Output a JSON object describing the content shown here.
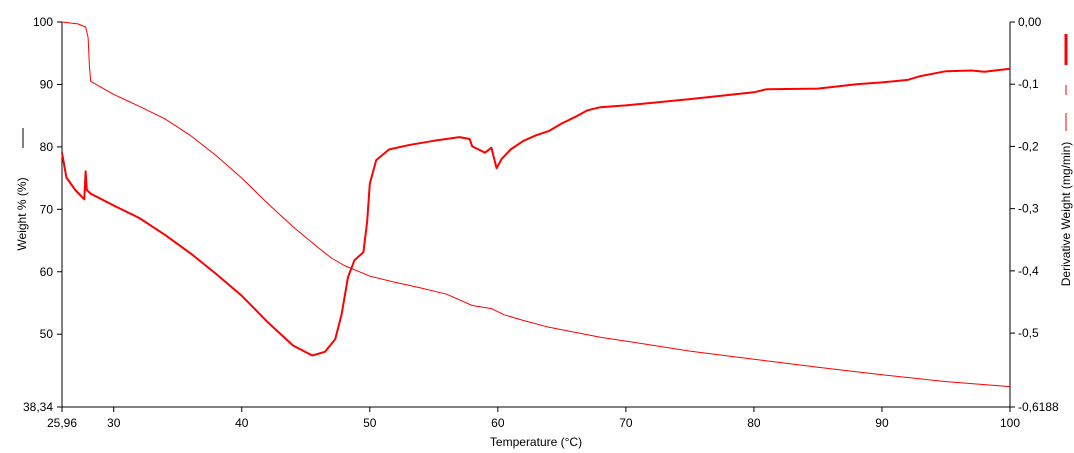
{
  "chart_data": {
    "type": "line",
    "xlabel": "Temperature (°C)",
    "ylabel_left": "Weight % (%)",
    "ylabel_right": "Derivative Weight (mg/min)",
    "xlim": [
      25.96,
      100
    ],
    "ylim_left": [
      38.34,
      100
    ],
    "ylim_right": [
      -0.6188,
      0
    ],
    "x_ticks": [
      "25,96",
      "30",
      "40",
      "50",
      "60",
      "70",
      "80",
      "90",
      "100"
    ],
    "x_tick_values": [
      25.96,
      30,
      40,
      50,
      60,
      70,
      80,
      90,
      100
    ],
    "y_left_ticks": [
      "38,34",
      "50",
      "60",
      "70",
      "80",
      "90",
      "100"
    ],
    "y_left_tick_values": [
      38.34,
      50,
      60,
      70,
      80,
      90,
      100
    ],
    "y_right_ticks": [
      "-0,6188",
      "-0,5",
      "-0,4",
      "-0,3",
      "-0,2",
      "-0,1",
      "0,00"
    ],
    "y_right_tick_values": [
      -0.6188,
      -0.5,
      -0.4,
      -0.3,
      -0.2,
      -0.1,
      0
    ],
    "grid": false,
    "color": "#ff0000",
    "series": [
      {
        "axis": "left",
        "style": "thin",
        "points": [
          [
            25.96,
            100
          ],
          [
            27.2,
            99.7
          ],
          [
            27.8,
            99.2
          ],
          [
            28.0,
            97.5
          ],
          [
            28.1,
            93
          ],
          [
            28.2,
            90.5
          ],
          [
            30,
            88.4
          ],
          [
            32,
            86.5
          ],
          [
            34,
            84.5
          ],
          [
            36,
            81.8
          ],
          [
            38,
            78.6
          ],
          [
            40,
            75
          ],
          [
            42,
            71
          ],
          [
            44,
            67.2
          ],
          [
            46,
            63.8
          ],
          [
            47,
            62.2
          ],
          [
            48,
            61
          ],
          [
            50,
            59.3
          ],
          [
            52,
            58.3
          ],
          [
            54,
            57.4
          ],
          [
            56,
            56.4
          ],
          [
            58,
            54.6
          ],
          [
            59.5,
            54.1
          ],
          [
            60.5,
            53.1
          ],
          [
            62,
            52.2
          ],
          [
            64,
            51.1
          ],
          [
            66,
            50.3
          ],
          [
            68,
            49.5
          ],
          [
            70,
            48.9
          ],
          [
            75,
            47.3
          ],
          [
            80,
            46
          ],
          [
            85,
            44.7
          ],
          [
            90,
            43.5
          ],
          [
            95,
            42.4
          ],
          [
            100,
            41.6
          ]
        ]
      },
      {
        "axis": "right",
        "style": "thick",
        "points": [
          [
            25.96,
            -0.21
          ],
          [
            26.3,
            -0.25
          ],
          [
            27.0,
            -0.27
          ],
          [
            27.7,
            -0.285
          ],
          [
            27.8,
            -0.24
          ],
          [
            27.9,
            -0.27
          ],
          [
            28.2,
            -0.276
          ],
          [
            30,
            -0.295
          ],
          [
            32,
            -0.315
          ],
          [
            34,
            -0.342
          ],
          [
            36,
            -0.372
          ],
          [
            38,
            -0.405
          ],
          [
            40,
            -0.44
          ],
          [
            42,
            -0.482
          ],
          [
            44,
            -0.52
          ],
          [
            45.5,
            -0.536
          ],
          [
            46.5,
            -0.53
          ],
          [
            47.3,
            -0.51
          ],
          [
            47.8,
            -0.47
          ],
          [
            48.3,
            -0.41
          ],
          [
            48.8,
            -0.383
          ],
          [
            49.5,
            -0.37
          ],
          [
            49.8,
            -0.32
          ],
          [
            50,
            -0.26
          ],
          [
            50.5,
            -0.222
          ],
          [
            51.5,
            -0.205
          ],
          [
            53,
            -0.198
          ],
          [
            55,
            -0.191
          ],
          [
            57,
            -0.185
          ],
          [
            57.8,
            -0.188
          ],
          [
            58,
            -0.2
          ],
          [
            58.5,
            -0.205
          ],
          [
            59,
            -0.21
          ],
          [
            59.5,
            -0.202
          ],
          [
            59.9,
            -0.235
          ],
          [
            60.3,
            -0.22
          ],
          [
            61,
            -0.205
          ],
          [
            62,
            -0.191
          ],
          [
            63,
            -0.182
          ],
          [
            64,
            -0.175
          ],
          [
            65,
            -0.163
          ],
          [
            66,
            -0.153
          ],
          [
            67,
            -0.142
          ],
          [
            68,
            -0.137
          ],
          [
            70,
            -0.134
          ],
          [
            75,
            -0.124
          ],
          [
            80,
            -0.113
          ],
          [
            81,
            -0.108
          ],
          [
            85,
            -0.107
          ],
          [
            88,
            -0.1
          ],
          [
            90,
            -0.097
          ],
          [
            92,
            -0.093
          ],
          [
            93,
            -0.087
          ],
          [
            95,
            -0.079
          ],
          [
            97,
            -0.078
          ],
          [
            98,
            -0.08
          ],
          [
            100,
            -0.075
          ]
        ]
      }
    ],
    "legend_icons": [
      "black-line-legend-icon",
      "red-thick-dash-legend-icon",
      "red-dash-legend-icon",
      "red-line-legend-icon"
    ]
  }
}
